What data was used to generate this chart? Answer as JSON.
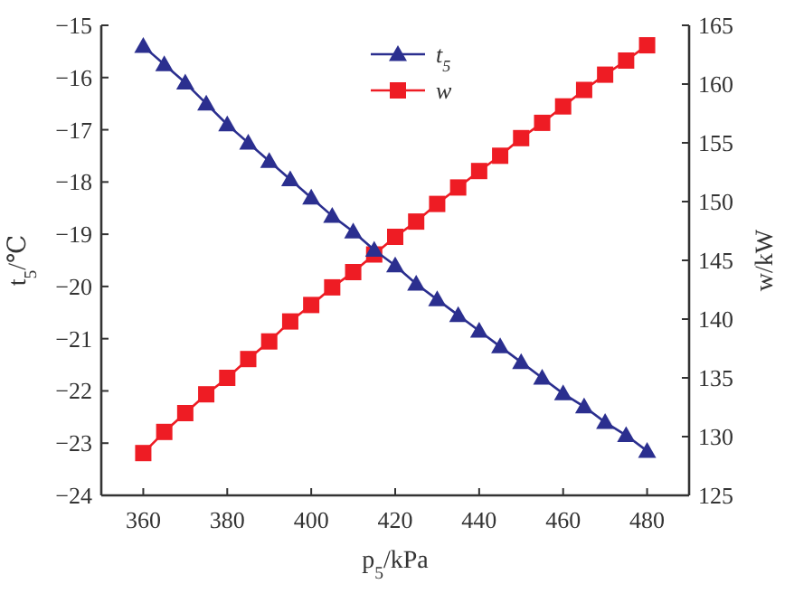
{
  "chart_data": {
    "type": "line",
    "xlabel": "p$_{5}$/kPa",
    "ylabel": "t$_{5}$/℃",
    "y2label": "w/kW",
    "x": [
      360,
      365,
      370,
      375,
      380,
      385,
      390,
      395,
      400,
      405,
      410,
      415,
      420,
      425,
      430,
      435,
      440,
      445,
      450,
      455,
      460,
      465,
      470,
      475,
      480
    ],
    "series": [
      {
        "name": "t$_{5}$",
        "color": "#2b2f8f",
        "marker": "triangle",
        "values": [
          -15.4,
          -15.75,
          -16.1,
          -16.5,
          -16.9,
          -17.25,
          -17.6,
          -17.95,
          -18.3,
          -18.65,
          -18.95,
          -19.3,
          -19.6,
          -19.95,
          -20.25,
          -20.55,
          -20.85,
          -21.15,
          -21.45,
          -21.75,
          -22.05,
          -22.3,
          -22.6,
          -22.85,
          -23.15
        ]
      },
      {
        "name": "w",
        "color": "#ee1c24",
        "marker": "square",
        "axis": "y2",
        "values": [
          128.6,
          130.4,
          132,
          133.6,
          135,
          136.6,
          138.1,
          139.8,
          141.2,
          142.7,
          144,
          145.5,
          147,
          148.3,
          149.8,
          151.2,
          152.6,
          153.9,
          155.4,
          156.7,
          158.1,
          159.5,
          160.8,
          162,
          163.3
        ]
      }
    ],
    "xlim": [
      350,
      490
    ],
    "xticks": [
      360,
      380,
      400,
      420,
      440,
      460,
      480
    ],
    "ylim": [
      -24,
      -15
    ],
    "yticks": [
      -24,
      -23,
      -22,
      -21,
      -20,
      -19,
      -18,
      -17,
      -16,
      -15
    ],
    "y2lim": [
      125,
      165
    ],
    "y2ticks": [
      125,
      130,
      135,
      140,
      145,
      150,
      155,
      160,
      165
    ],
    "legend": "top",
    "grid": false,
    "line_style": "solid"
  }
}
